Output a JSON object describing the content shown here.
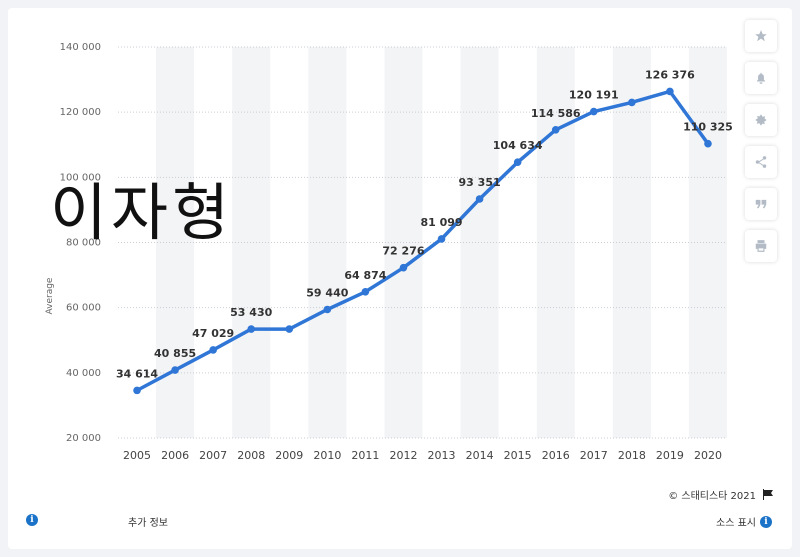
{
  "chart_data": {
    "type": "line",
    "categories": [
      "2005",
      "2006",
      "2007",
      "2008",
      "2009",
      "2010",
      "2011",
      "2012",
      "2013",
      "2014",
      "2015",
      "2016",
      "2017",
      "2018",
      "2019",
      "2020"
    ],
    "values": [
      34614,
      40855,
      47029,
      53430,
      53430,
      59440,
      64874,
      72276,
      81099,
      93351,
      104634,
      114586,
      120191,
      123000,
      126376,
      110325
    ],
    "data_labels": [
      "34 614",
      "40 855",
      "47 029",
      "53 430",
      "",
      "59 440",
      "64 874",
      "72 276",
      "81 099",
      "93 351",
      "104 634",
      "114 586",
      "120 191",
      "",
      "126 376",
      "110 325"
    ],
    "ylabel": "Average",
    "xlabel": "",
    "title": "",
    "ylim": [
      20000,
      140000
    ],
    "yticks": [
      20000,
      40000,
      60000,
      80000,
      100000,
      120000,
      140000
    ],
    "ytick_labels": [
      "20 000",
      "40 000",
      "60 000",
      "80 000",
      "100 000",
      "120 000",
      "140 000"
    ],
    "grid": true,
    "line_color": "#2f76d6",
    "band_color": "#f3f4f6"
  },
  "overlay_text": "이자형",
  "footer": {
    "copyright": "© 스태티스타 2021",
    "additional_info": "추가 정보",
    "source": "소스 표시"
  },
  "toolbar": {
    "icons": [
      "star-icon",
      "bell-icon",
      "gear-icon",
      "share-icon",
      "quote-icon",
      "print-icon"
    ]
  }
}
